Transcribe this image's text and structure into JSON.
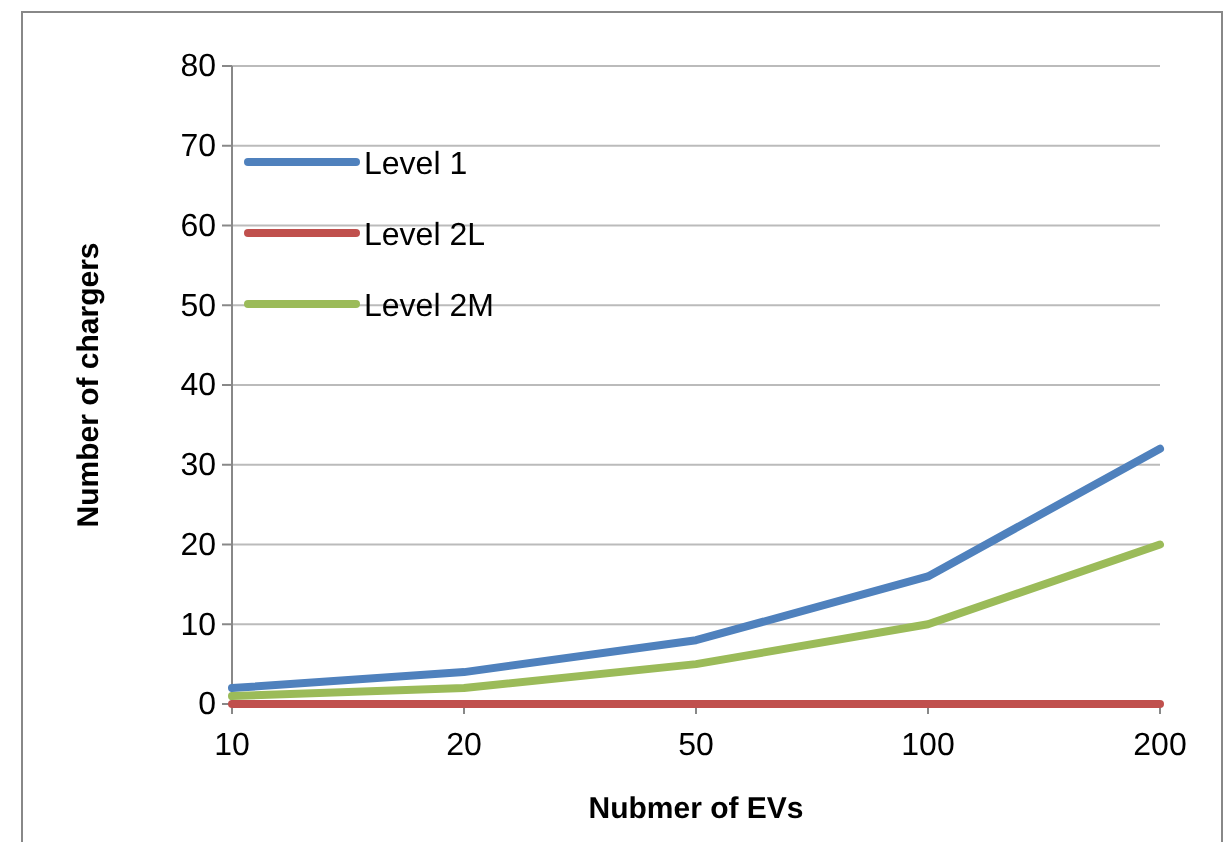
{
  "chart_data": {
    "type": "line",
    "xlabel": "Nubmer of EVs",
    "ylabel": "Number of chargers",
    "categories": [
      "10",
      "20",
      "50",
      "100",
      "200"
    ],
    "series": [
      {
        "name": "Level 1",
        "color": "#4f81bd",
        "values": [
          2,
          4,
          8,
          16,
          32
        ]
      },
      {
        "name": "Level 2L",
        "color": "#c0504d",
        "values": [
          0,
          0,
          0,
          0,
          0
        ]
      },
      {
        "name": "Level 2M",
        "color": "#9bbb59",
        "values": [
          1,
          2,
          5,
          10,
          20
        ]
      }
    ],
    "ylim": [
      0,
      80
    ],
    "yticks": [
      0,
      10,
      20,
      30,
      40,
      50,
      60,
      70,
      80
    ],
    "grid": "y",
    "legend": "top left",
    "marker": "none",
    "line_style": "solid"
  }
}
